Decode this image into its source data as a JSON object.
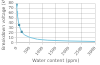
{
  "chart_data": {
    "type": "line",
    "xlabel": "Water content (ppm)",
    "ylabel": "Breakdown voltage (kV)",
    "series": [
      {
        "type": "line",
        "color": "#80c8e0",
        "x": [
          3,
          10,
          20,
          40,
          70,
          100,
          150,
          200,
          300,
          500,
          800,
          1200,
          2000,
          3000
        ],
        "values": [
          78,
          72,
          64,
          54,
          44,
          36,
          28,
          22,
          16,
          11,
          7,
          5,
          3.5,
          2.5
        ]
      },
      {
        "type": "scatter",
        "color": "#4a90a8",
        "marker": "square",
        "x": [
          3,
          100,
          200
        ],
        "values": [
          78,
          36,
          22
        ]
      }
    ],
    "xlim": [
      0,
      3000
    ],
    "ylim": [
      0,
      80
    ],
    "xticks": [
      0,
      500,
      1000,
      1500,
      2000,
      2500,
      3000
    ],
    "yticks": [
      0,
      10,
      20,
      30,
      40,
      50,
      60,
      70,
      80
    ],
    "grid": true
  }
}
